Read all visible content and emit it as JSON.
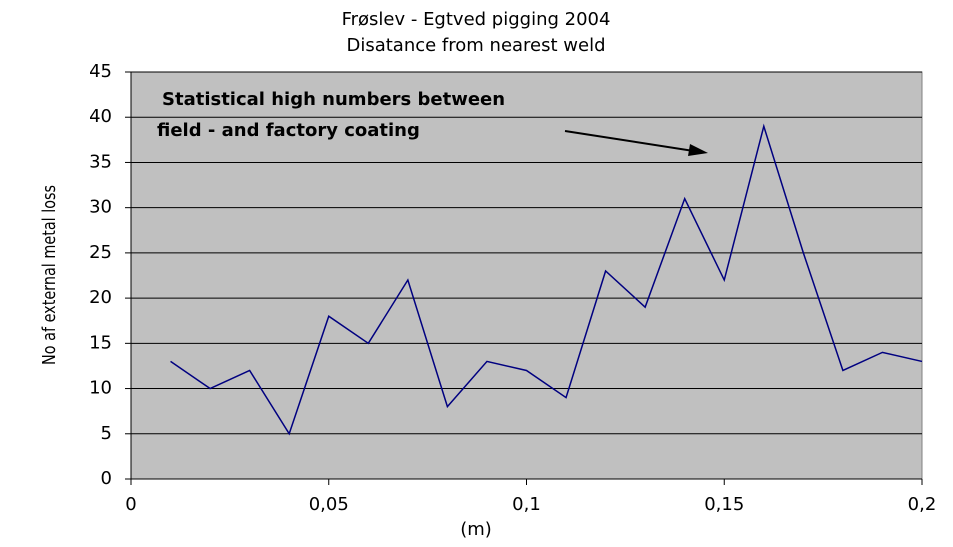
{
  "chart_data": {
    "type": "line",
    "title": "Frøslev - Egtved pigging 2004",
    "subtitle": "Disatance from nearest weld",
    "ylabel": "No af external metal loss",
    "xlabel": "(m)",
    "annotation": [
      "Statistical high numbers between",
      "field - and factory coating"
    ],
    "x": [
      0.01,
      0.02,
      0.03,
      0.04,
      0.05,
      0.06,
      0.07,
      0.08,
      0.09,
      0.1,
      0.11,
      0.12,
      0.13,
      0.14,
      0.15,
      0.16,
      0.17,
      0.18,
      0.19,
      0.2
    ],
    "values": [
      13,
      10,
      12,
      5,
      18,
      15,
      22,
      8,
      13,
      12,
      9,
      23,
      19,
      31,
      22,
      39,
      25,
      12,
      14,
      13
    ],
    "color": "#000080",
    "xlim": [
      0,
      0.2
    ],
    "xticks": [
      0,
      {
        "value": 0.05,
        "label": "0,05"
      },
      {
        "value": 0.1,
        "label": "0,1"
      },
      {
        "value": 0.15,
        "label": "0,15"
      },
      {
        "value": 0.2,
        "label": "0,2"
      }
    ],
    "ylim": [
      0,
      45
    ],
    "yticks": [
      0,
      5,
      10,
      15,
      20,
      25,
      30,
      35,
      40,
      45
    ],
    "grid": true
  }
}
